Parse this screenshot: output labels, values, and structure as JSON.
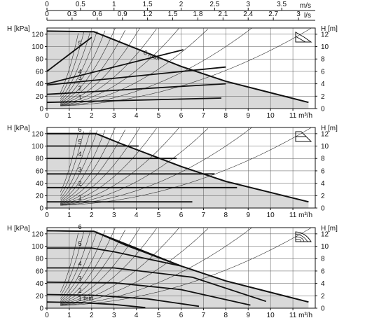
{
  "chart_data": {
    "type": "line",
    "top_axes": {
      "velocity": {
        "unit": "m/s",
        "range": [
          0,
          4
        ],
        "ticks": [
          "0",
          "0.5",
          "1",
          "1.5",
          "2",
          "2.5",
          "3",
          "3.5"
        ]
      },
      "flow_ls": {
        "unit": "l/s",
        "range": [
          0,
          3.2
        ],
        "ticks": [
          "0",
          "0.3",
          "0.6",
          "0.9",
          "1.2",
          "1.5",
          "1.8",
          "2.1",
          "2.4",
          "2.7",
          "3"
        ]
      }
    },
    "x_axis": {
      "unit": "m³/h",
      "range": [
        0,
        12
      ],
      "ticks": [
        "0",
        "1",
        "2",
        "3",
        "4",
        "5",
        "6",
        "7",
        "8",
        "9",
        "10",
        "11"
      ]
    },
    "y_left": {
      "label": "H [kPa]",
      "range": [
        0,
        130
      ],
      "ticks": [
        "0",
        "20",
        "40",
        "60",
        "80",
        "100",
        "120"
      ]
    },
    "y_right": {
      "label": "H [m]",
      "range": [
        0,
        13
      ],
      "ticks": [
        "0",
        "2",
        "4",
        "6",
        "8",
        "10",
        "12"
      ]
    },
    "panels": [
      {
        "mode": "proportional-pressure",
        "icon": "proportional-pressure-icon",
        "max_curve": {
          "x": [
            0,
            2.1,
            6,
            8,
            11.7
          ],
          "y": [
            125,
            124,
            68,
            44,
            10
          ]
        },
        "curves": [
          {
            "label": "1",
            "x": [
              0,
              7.8
            ],
            "y": [
              10,
              17
            ]
          },
          {
            "label": "2",
            "x": [
              0,
              8
            ],
            "y": [
              23,
              40
            ]
          },
          {
            "label": "3",
            "x": [
              0,
              8
            ],
            "y": [
              38,
              67
            ]
          },
          {
            "label": "4",
            "x": [
              0,
              6.1
            ],
            "y": [
              40,
              95
            ]
          },
          {
            "label": "5",
            "x": [
              0,
              2
            ],
            "y": [
              60,
              115
            ]
          }
        ],
        "max_label": "6 max"
      },
      {
        "mode": "constant-pressure",
        "icon": "constant-pressure-icon",
        "max_curve": {
          "x": [
            0,
            2.2,
            3.3,
            6,
            8,
            11.7
          ],
          "y": [
            120,
            120,
            104,
            67,
            43,
            10
          ]
        },
        "curves": [
          {
            "label": "1",
            "x": [
              0,
              6.5
            ],
            "y": [
              10,
              10
            ]
          },
          {
            "label": "2",
            "x": [
              0,
              8.5
            ],
            "y": [
              33,
              33
            ]
          },
          {
            "label": "3",
            "x": [
              0,
              7.5
            ],
            "y": [
              55,
              55
            ]
          },
          {
            "label": "4",
            "x": [
              0,
              5.8
            ],
            "y": [
              80,
              80
            ]
          },
          {
            "label": "5",
            "x": [
              0,
              4.1
            ],
            "y": [
              100,
              100
            ]
          },
          {
            "label": "6",
            "x": [
              0,
              2.2
            ],
            "y": [
              120,
              120
            ]
          }
        ]
      },
      {
        "mode": "constant-curve",
        "icon": "constant-curve-icon",
        "max_curve": {
          "x": [
            0,
            2.1,
            6,
            8,
            11.7
          ],
          "y": [
            125,
            124,
            68,
            44,
            10
          ]
        },
        "curves": [
          {
            "label": "1 min",
            "x": [
              0,
              1.5,
              3,
              4.4
            ],
            "y": [
              10,
              9,
              6,
              1
            ]
          },
          {
            "label": "2",
            "x": [
              0,
              2,
              4.5,
              6.8
            ],
            "y": [
              22,
              21,
              15,
              3
            ]
          },
          {
            "label": "3",
            "x": [
              0,
              3,
              6,
              9.1
            ],
            "y": [
              42,
              41,
              30,
              5
            ]
          },
          {
            "label": "4",
            "x": [
              0,
              3,
              6.5,
              9.8
            ],
            "y": [
              65,
              65,
              50,
              11
            ]
          },
          {
            "label": "5",
            "x": [
              0,
              2,
              3,
              6
            ],
            "y": [
              97,
              97,
              91,
              68
            ]
          },
          {
            "label": "6",
            "x": [
              0,
              2.1,
              3.5,
              6
            ],
            "y": [
              125,
              124,
              102,
              68
            ]
          }
        ]
      }
    ],
    "system_curve_k": [
      0.9,
      1.5,
      2.4,
      3.6,
      5.2,
      7.3,
      10,
      13.5,
      18,
      24,
      32,
      44,
      60
    ]
  }
}
